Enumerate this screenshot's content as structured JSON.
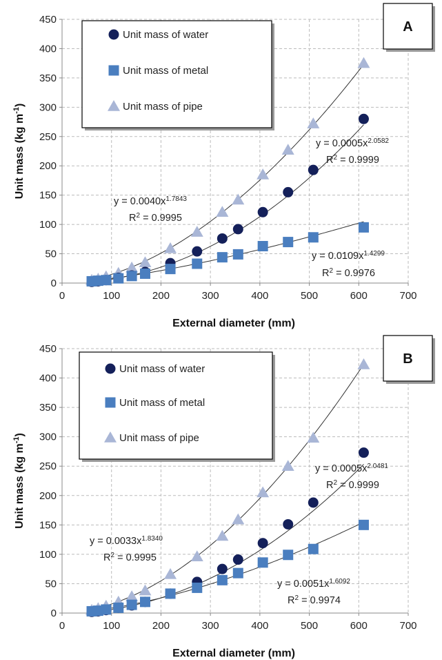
{
  "chart_data": [
    {
      "type": "scatter",
      "panel_label": "A",
      "xlabel": "External diameter (mm)",
      "ylabel_main": "Unit mass (kg m",
      "ylabel_sup": "-1",
      "ylabel_close": ")",
      "xlim": [
        0,
        700
      ],
      "ylim": [
        0,
        450
      ],
      "xticks": [
        0,
        100,
        200,
        300,
        400,
        500,
        600,
        700
      ],
      "yticks": [
        0,
        50,
        100,
        150,
        200,
        250,
        300,
        350,
        400,
        450
      ],
      "grid": true,
      "legend_position": "top-left",
      "x": [
        60,
        73,
        89,
        114,
        141,
        168,
        219,
        273,
        324,
        356,
        406,
        457,
        508,
        610
      ],
      "series": [
        {
          "name": "Unit mass of water",
          "marker": "circle",
          "color": "#14205a",
          "values": [
            2,
            3,
            5,
            9,
            13,
            19,
            34,
            54,
            76,
            92,
            121,
            155,
            193,
            280
          ],
          "fit": {
            "a": 0.0005,
            "b": 2.0582
          },
          "equation": {
            "prefix": "y = 0.0005x",
            "sup": "2.0582",
            "r2_label": "R",
            "r2_sup": "2",
            "r2_value": " = 0.9999"
          }
        },
        {
          "name": "Unit mass of metal",
          "marker": "square",
          "color": "#4a7ebf",
          "values": [
            3,
            4,
            5,
            8,
            12,
            16,
            24,
            33,
            44,
            49,
            63,
            70,
            78,
            95
          ],
          "fit": {
            "a": 0.0109,
            "b": 1.4299
          },
          "equation": {
            "prefix": "y = 0.0109x",
            "sup": "1.4299",
            "r2_label": "R",
            "r2_sup": "2",
            "r2_value": " = 0.9976"
          }
        },
        {
          "name": "Unit mass of pipe",
          "marker": "triangle",
          "color": "#a9b6d6",
          "values": [
            5,
            7,
            11,
            17,
            26,
            35,
            59,
            87,
            121,
            142,
            185,
            227,
            272,
            375
          ],
          "fit": {
            "a": 0.004,
            "b": 1.7843
          },
          "equation": {
            "prefix": "y = 0.0040x",
            "sup": "1.7843",
            "r2_label": "R",
            "r2_sup": "2",
            "r2_value": " = 0.9995"
          }
        }
      ]
    },
    {
      "type": "scatter",
      "panel_label": "B",
      "xlabel": "External diameter (mm)",
      "ylabel_main": "Unit mass (kg m",
      "ylabel_sup": "-1",
      "ylabel_close": ")",
      "xlim": [
        0,
        700
      ],
      "ylim": [
        0,
        450
      ],
      "xticks": [
        0,
        100,
        200,
        300,
        400,
        500,
        600,
        700
      ],
      "yticks": [
        0,
        50,
        100,
        150,
        200,
        250,
        300,
        350,
        400,
        450
      ],
      "grid": true,
      "legend_position": "top-left",
      "x": [
        60,
        73,
        89,
        114,
        141,
        168,
        219,
        273,
        324,
        356,
        406,
        457,
        508,
        610
      ],
      "series": [
        {
          "name": "Unit mass of water",
          "marker": "circle",
          "color": "#14205a",
          "values": [
            2,
            3,
            5,
            9,
            13,
            19,
            33,
            53,
            75,
            91,
            119,
            151,
            188,
            273
          ],
          "fit": {
            "a": 0.0005,
            "b": 2.0481
          },
          "equation": {
            "prefix": "y = 0.0005x",
            "sup": "2.0481",
            "r2_label": "R",
            "r2_sup": "2",
            "r2_value": " = 0.9999"
          }
        },
        {
          "name": "Unit mass of metal",
          "marker": "square",
          "color": "#4a7ebf",
          "values": [
            3,
            4,
            6,
            9,
            14,
            19,
            33,
            43,
            56,
            68,
            86,
            99,
            109,
            150
          ],
          "fit": {
            "a": 0.0051,
            "b": 1.6092
          },
          "equation": {
            "prefix": "y = 0.0051x",
            "sup": "1.6092",
            "r2_label": "R",
            "r2_sup": "2",
            "r2_value": " = 0.9974"
          }
        },
        {
          "name": "Unit mass of pipe",
          "marker": "triangle",
          "color": "#a9b6d6",
          "values": [
            5,
            8,
            12,
            19,
            28,
            38,
            66,
            96,
            131,
            159,
            205,
            250,
            298,
            423
          ],
          "fit": {
            "a": 0.0033,
            "b": 1.834
          },
          "equation": {
            "prefix": "y = 0.0033x",
            "sup": "1.8340",
            "r2_label": "R",
            "r2_sup": "2",
            "r2_value": " = 0.9995"
          }
        }
      ]
    }
  ]
}
